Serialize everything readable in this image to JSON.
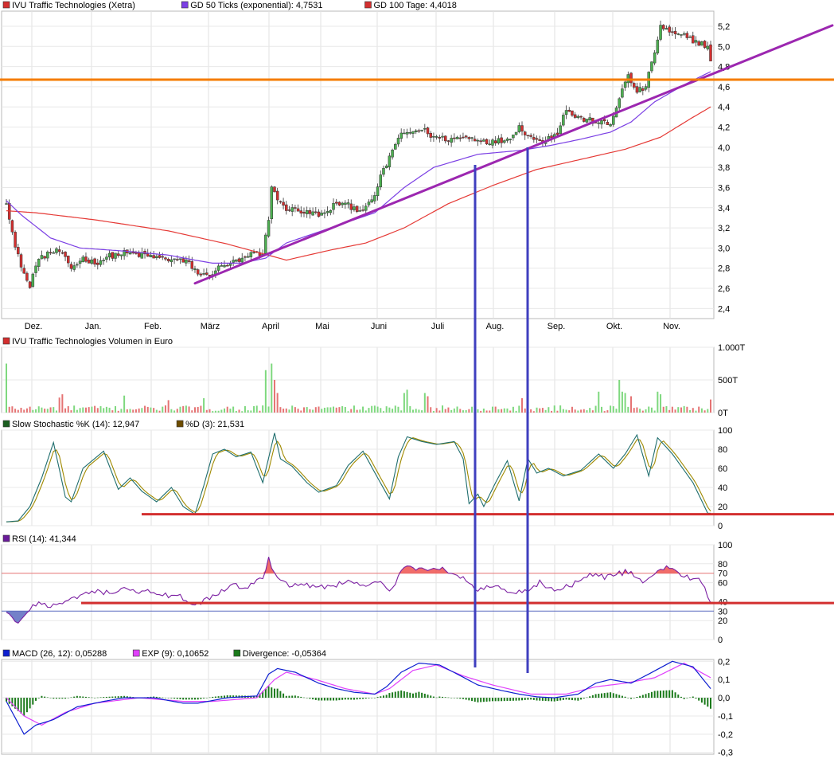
{
  "chart_data": [
    {
      "type": "candlestick",
      "panel": "price",
      "legend": [
        {
          "label": "IVU Traffic Technologies (Xetra)",
          "color": "#d32f2f"
        },
        {
          "label": "GD 50 Ticks (exponential): 4,7531",
          "color": "#7b3fe4"
        },
        {
          "label": "GD 100 Tage: 4,4018",
          "color": "#d32f2f"
        }
      ],
      "x_ticks": [
        "Dez.",
        "Jan.",
        "Feb.",
        "März",
        "April",
        "Mai",
        "Juni",
        "Juli",
        "Aug.",
        "Sep.",
        "Okt.",
        "Nov."
      ],
      "y_ticks": [
        "5,2",
        "5,0",
        "4,8",
        "4,6",
        "4,4",
        "4,2",
        "4,0",
        "3,8",
        "3,6",
        "3,4",
        "3,2",
        "3,0",
        "2,8",
        "2,6",
        "2,4"
      ],
      "ylim": [
        2.3,
        5.35
      ],
      "close_anchors": [
        [
          0,
          3.47
        ],
        [
          3,
          3.0
        ],
        [
          6,
          2.75
        ],
        [
          8,
          2.6
        ],
        [
          10,
          2.85
        ],
        [
          14,
          2.95
        ],
        [
          18,
          2.97
        ],
        [
          22,
          2.8
        ],
        [
          26,
          2.9
        ],
        [
          30,
          2.85
        ],
        [
          35,
          2.92
        ],
        [
          40,
          2.95
        ],
        [
          46,
          2.93
        ],
        [
          52,
          2.9
        ],
        [
          58,
          2.88
        ],
        [
          62,
          2.85
        ],
        [
          65,
          2.75
        ],
        [
          68,
          2.72
        ],
        [
          72,
          2.8
        ],
        [
          76,
          2.85
        ],
        [
          80,
          2.88
        ],
        [
          84,
          2.95
        ],
        [
          87,
          2.92
        ],
        [
          89,
          3.3
        ],
        [
          90,
          3.6
        ],
        [
          92,
          3.5
        ],
        [
          94,
          3.4
        ],
        [
          98,
          3.38
        ],
        [
          102,
          3.35
        ],
        [
          108,
          3.33
        ],
        [
          112,
          3.45
        ],
        [
          116,
          3.42
        ],
        [
          120,
          3.38
        ],
        [
          124,
          3.45
        ],
        [
          127,
          3.7
        ],
        [
          130,
          3.9
        ],
        [
          133,
          4.1
        ],
        [
          137,
          4.15
        ],
        [
          141,
          4.18
        ],
        [
          145,
          4.1
        ],
        [
          150,
          4.08
        ],
        [
          155,
          4.1
        ],
        [
          160,
          4.08
        ],
        [
          165,
          4.05
        ],
        [
          170,
          4.08
        ],
        [
          174,
          4.2
        ],
        [
          178,
          4.1
        ],
        [
          181,
          4.05
        ],
        [
          184,
          4.1
        ],
        [
          187,
          4.15
        ],
        [
          190,
          4.38
        ],
        [
          193,
          4.3
        ],
        [
          197,
          4.27
        ],
        [
          201,
          4.25
        ],
        [
          205,
          4.22
        ],
        [
          208,
          4.5
        ],
        [
          211,
          4.7
        ],
        [
          214,
          4.55
        ],
        [
          217,
          4.6
        ],
        [
          220,
          4.95
        ],
        [
          222,
          5.2
        ],
        [
          226,
          5.12
        ],
        [
          230,
          5.1
        ],
        [
          234,
          5.05
        ],
        [
          238,
          5.0
        ],
        [
          239,
          4.85
        ]
      ],
      "ema50_anchors": [
        [
          0,
          3.47
        ],
        [
          5,
          3.33
        ],
        [
          15,
          3.1
        ],
        [
          25,
          3.0
        ],
        [
          40,
          2.97
        ],
        [
          55,
          2.93
        ],
        [
          64,
          2.88
        ],
        [
          70,
          2.85
        ],
        [
          80,
          2.85
        ],
        [
          88,
          2.9
        ],
        [
          95,
          3.05
        ],
        [
          110,
          3.2
        ],
        [
          125,
          3.35
        ],
        [
          135,
          3.6
        ],
        [
          145,
          3.8
        ],
        [
          160,
          3.93
        ],
        [
          175,
          3.97
        ],
        [
          185,
          4.02
        ],
        [
          195,
          4.08
        ],
        [
          205,
          4.15
        ],
        [
          212,
          4.25
        ],
        [
          220,
          4.45
        ],
        [
          230,
          4.62
        ],
        [
          239,
          4.75
        ]
      ],
      "sma100_anchors": [
        [
          0,
          3.37
        ],
        [
          10,
          3.35
        ],
        [
          30,
          3.28
        ],
        [
          55,
          3.17
        ],
        [
          75,
          3.04
        ],
        [
          85,
          2.96
        ],
        [
          95,
          2.88
        ],
        [
          110,
          2.98
        ],
        [
          122,
          3.05
        ],
        [
          135,
          3.2
        ],
        [
          150,
          3.44
        ],
        [
          165,
          3.62
        ],
        [
          180,
          3.78
        ],
        [
          195,
          3.88
        ],
        [
          210,
          3.98
        ],
        [
          222,
          4.1
        ],
        [
          232,
          4.28
        ],
        [
          239,
          4.4
        ]
      ],
      "support_line": {
        "from": [
          64,
          2.65
        ],
        "to": [
          239,
          4.72
        ],
        "color": "#9c27b0"
      },
      "horizontal_line": {
        "value": 4.67,
        "color": "#f57c00"
      }
    },
    {
      "type": "bar",
      "panel": "volume",
      "legend": [
        {
          "label": "IVU Traffic Technologies Volumen in Euro",
          "color": "#d32f2f"
        }
      ],
      "y_ticks": [
        "1.000T",
        "500T",
        "0T"
      ],
      "ylim": [
        0,
        1000
      ],
      "peaks": [
        [
          0,
          750
        ],
        [
          18,
          230
        ],
        [
          19,
          280
        ],
        [
          40,
          260
        ],
        [
          55,
          190
        ],
        [
          67,
          220
        ],
        [
          88,
          650
        ],
        [
          90,
          750
        ],
        [
          91,
          500
        ],
        [
          92,
          300
        ],
        [
          135,
          300
        ],
        [
          136,
          350
        ],
        [
          142,
          300
        ],
        [
          143,
          250
        ],
        [
          175,
          220
        ],
        [
          201,
          320
        ],
        [
          208,
          500
        ],
        [
          209,
          320
        ],
        [
          210,
          300
        ],
        [
          212,
          250
        ],
        [
          221,
          320
        ],
        [
          222,
          280
        ],
        [
          239,
          200
        ]
      ]
    },
    {
      "type": "line",
      "panel": "stochastic",
      "legend": [
        {
          "label": "Slow Stochastic %K (14): 12,947",
          "color": "#1b5e20"
        },
        {
          "label": "%D (3): 21,531",
          "color": "#6d4c00"
        }
      ],
      "y_ticks": [
        "100",
        "80",
        "60",
        "40",
        "20",
        "0"
      ],
      "ylim": [
        0,
        100
      ],
      "k_anchors": [
        [
          0,
          4
        ],
        [
          4,
          5
        ],
        [
          8,
          20
        ],
        [
          12,
          50
        ],
        [
          16,
          87
        ],
        [
          20,
          30
        ],
        [
          22,
          25
        ],
        [
          26,
          60
        ],
        [
          33,
          78
        ],
        [
          38,
          38
        ],
        [
          42,
          50
        ],
        [
          46,
          36
        ],
        [
          51,
          25
        ],
        [
          56,
          40
        ],
        [
          60,
          20
        ],
        [
          64,
          12
        ],
        [
          67,
          42
        ],
        [
          70,
          75
        ],
        [
          74,
          80
        ],
        [
          78,
          72
        ],
        [
          83,
          77
        ],
        [
          87,
          45
        ],
        [
          91,
          97
        ],
        [
          93,
          70
        ],
        [
          97,
          62
        ],
        [
          102,
          45
        ],
        [
          106,
          35
        ],
        [
          112,
          42
        ],
        [
          116,
          63
        ],
        [
          121,
          78
        ],
        [
          126,
          50
        ],
        [
          130,
          28
        ],
        [
          133,
          72
        ],
        [
          136,
          93
        ],
        [
          141,
          88
        ],
        [
          146,
          85
        ],
        [
          152,
          88
        ],
        [
          155,
          70
        ],
        [
          157,
          23
        ],
        [
          160,
          33
        ],
        [
          162,
          20
        ],
        [
          166,
          45
        ],
        [
          170,
          68
        ],
        [
          174,
          26
        ],
        [
          177,
          70
        ],
        [
          180,
          55
        ],
        [
          184,
          60
        ],
        [
          189,
          52
        ],
        [
          195,
          58
        ],
        [
          201,
          75
        ],
        [
          206,
          60
        ],
        [
          210,
          75
        ],
        [
          214,
          95
        ],
        [
          218,
          52
        ],
        [
          221,
          92
        ],
        [
          226,
          75
        ],
        [
          233,
          45
        ],
        [
          238,
          13
        ]
      ],
      "ref_line": {
        "value": 12,
        "color": "#d32f2f"
      }
    },
    {
      "type": "line",
      "panel": "rsi",
      "legend": [
        {
          "label": "RSI (14): 41,344",
          "color": "#6a1b9a"
        }
      ],
      "y_ticks": [
        "100",
        "80",
        "70",
        "60",
        "40",
        "30",
        "20",
        "0"
      ],
      "ylim": [
        0,
        100
      ],
      "levels": [
        70,
        30
      ],
      "rsi_anchors": [
        [
          0,
          28
        ],
        [
          3,
          18
        ],
        [
          6,
          22
        ],
        [
          10,
          38
        ],
        [
          15,
          36
        ],
        [
          20,
          38
        ],
        [
          25,
          46
        ],
        [
          30,
          50
        ],
        [
          35,
          49
        ],
        [
          40,
          52
        ],
        [
          45,
          50
        ],
        [
          50,
          51
        ],
        [
          55,
          45
        ],
        [
          58,
          48
        ],
        [
          61,
          38
        ],
        [
          64,
          35
        ],
        [
          68,
          42
        ],
        [
          73,
          50
        ],
        [
          77,
          58
        ],
        [
          81,
          55
        ],
        [
          87,
          64
        ],
        [
          89,
          85
        ],
        [
          91,
          68
        ],
        [
          96,
          58
        ],
        [
          103,
          57
        ],
        [
          109,
          55
        ],
        [
          116,
          62
        ],
        [
          121,
          56
        ],
        [
          127,
          60
        ],
        [
          131,
          52
        ],
        [
          133,
          68
        ],
        [
          136,
          80
        ],
        [
          140,
          74
        ],
        [
          145,
          76
        ],
        [
          150,
          72
        ],
        [
          155,
          65
        ],
        [
          160,
          52
        ],
        [
          165,
          56
        ],
        [
          172,
          49
        ],
        [
          177,
          50
        ],
        [
          181,
          60
        ],
        [
          186,
          52
        ],
        [
          192,
          57
        ],
        [
          197,
          68
        ],
        [
          204,
          66
        ],
        [
          211,
          72
        ],
        [
          216,
          60
        ],
        [
          219,
          66
        ],
        [
          224,
          78
        ],
        [
          229,
          68
        ],
        [
          233,
          65
        ],
        [
          236,
          60
        ],
        [
          239,
          41
        ]
      ],
      "ref_line": {
        "value": 38.5,
        "color": "#d32f2f"
      }
    },
    {
      "type": "line",
      "panel": "macd",
      "legend": [
        {
          "label": "MACD (26, 12): 0,05288",
          "color": "#0d1fd0"
        },
        {
          "label": "EXP (9): 0,10652",
          "color": "#e040fb"
        },
        {
          "label": "Divergence: -0,05364",
          "color": "#1b7a1b"
        }
      ],
      "y_ticks": [
        "0,2",
        "0,1",
        "0,0",
        "-0,1",
        "-0,2",
        "-0,3"
      ],
      "ylim": [
        -0.31,
        0.21
      ],
      "macd_anchors": [
        [
          0,
          -0.02
        ],
        [
          6,
          -0.2
        ],
        [
          10,
          -0.15
        ],
        [
          16,
          -0.12
        ],
        [
          24,
          -0.05
        ],
        [
          33,
          -0.02
        ],
        [
          40,
          0.0
        ],
        [
          50,
          0.0
        ],
        [
          60,
          -0.03
        ],
        [
          65,
          -0.03
        ],
        [
          75,
          0.0
        ],
        [
          85,
          0.01
        ],
        [
          89,
          0.13
        ],
        [
          92,
          0.16
        ],
        [
          98,
          0.14
        ],
        [
          106,
          0.08
        ],
        [
          112,
          0.05
        ],
        [
          118,
          0.03
        ],
        [
          125,
          0.02
        ],
        [
          129,
          0.06
        ],
        [
          134,
          0.14
        ],
        [
          140,
          0.19
        ],
        [
          147,
          0.18
        ],
        [
          153,
          0.13
        ],
        [
          160,
          0.07
        ],
        [
          168,
          0.04
        ],
        [
          174,
          0.02
        ],
        [
          180,
          0.005
        ],
        [
          186,
          0.0
        ],
        [
          194,
          0.02
        ],
        [
          200,
          0.08
        ],
        [
          205,
          0.1
        ],
        [
          212,
          0.08
        ],
        [
          218,
          0.13
        ],
        [
          226,
          0.2
        ],
        [
          233,
          0.17
        ],
        [
          239,
          0.05
        ]
      ],
      "exp_anchors": [
        [
          0,
          0.0
        ],
        [
          6,
          -0.1
        ],
        [
          12,
          -0.15
        ],
        [
          20,
          -0.08
        ],
        [
          30,
          -0.03
        ],
        [
          45,
          0.0
        ],
        [
          60,
          -0.02
        ],
        [
          70,
          -0.02
        ],
        [
          85,
          0.0
        ],
        [
          91,
          0.1
        ],
        [
          95,
          0.14
        ],
        [
          105,
          0.1
        ],
        [
          115,
          0.05
        ],
        [
          125,
          0.02
        ],
        [
          130,
          0.05
        ],
        [
          138,
          0.15
        ],
        [
          146,
          0.18
        ],
        [
          155,
          0.12
        ],
        [
          165,
          0.07
        ],
        [
          178,
          0.02
        ],
        [
          190,
          0.02
        ],
        [
          200,
          0.06
        ],
        [
          210,
          0.08
        ],
        [
          220,
          0.11
        ],
        [
          230,
          0.19
        ],
        [
          239,
          0.11
        ]
      ]
    }
  ],
  "annotation_lines": {
    "color": "#3f3fbf"
  }
}
